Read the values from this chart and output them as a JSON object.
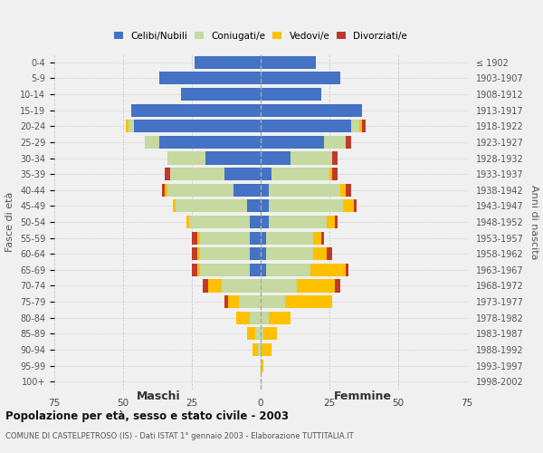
{
  "age_groups": [
    "0-4",
    "5-9",
    "10-14",
    "15-19",
    "20-24",
    "25-29",
    "30-34",
    "35-39",
    "40-44",
    "45-49",
    "50-54",
    "55-59",
    "60-64",
    "65-69",
    "70-74",
    "75-79",
    "80-84",
    "85-89",
    "90-94",
    "95-99",
    "100+"
  ],
  "birth_years": [
    "1998-2002",
    "1993-1997",
    "1988-1992",
    "1983-1987",
    "1978-1982",
    "1973-1977",
    "1968-1972",
    "1963-1967",
    "1958-1962",
    "1953-1957",
    "1948-1952",
    "1943-1947",
    "1938-1942",
    "1933-1937",
    "1928-1932",
    "1923-1927",
    "1918-1922",
    "1913-1917",
    "1908-1912",
    "1903-1907",
    "≤ 1902"
  ],
  "maschi": {
    "celibi": [
      24,
      37,
      29,
      47,
      46,
      37,
      20,
      13,
      10,
      5,
      4,
      4,
      4,
      4,
      0,
      0,
      0,
      0,
      0,
      0,
      0
    ],
    "coniugati": [
      0,
      0,
      0,
      0,
      2,
      5,
      14,
      20,
      24,
      26,
      22,
      18,
      18,
      18,
      14,
      8,
      4,
      2,
      1,
      0,
      0
    ],
    "vedovi": [
      0,
      0,
      0,
      0,
      1,
      0,
      0,
      0,
      1,
      1,
      1,
      1,
      1,
      1,
      5,
      4,
      5,
      3,
      2,
      0,
      0
    ],
    "divorziati": [
      0,
      0,
      0,
      0,
      0,
      0,
      0,
      2,
      1,
      0,
      0,
      2,
      2,
      2,
      2,
      1,
      0,
      0,
      0,
      0,
      0
    ]
  },
  "femmine": {
    "nubili": [
      20,
      29,
      22,
      37,
      33,
      23,
      11,
      4,
      3,
      3,
      3,
      2,
      2,
      2,
      0,
      0,
      0,
      0,
      0,
      0,
      0
    ],
    "coniugate": [
      0,
      0,
      0,
      0,
      3,
      8,
      15,
      21,
      26,
      27,
      21,
      17,
      17,
      16,
      13,
      9,
      3,
      1,
      0,
      0,
      0
    ],
    "vedove": [
      0,
      0,
      0,
      0,
      1,
      0,
      0,
      1,
      2,
      4,
      3,
      3,
      5,
      13,
      14,
      17,
      8,
      5,
      4,
      1,
      0
    ],
    "divorziate": [
      0,
      0,
      0,
      0,
      1,
      2,
      2,
      2,
      2,
      1,
      1,
      1,
      2,
      1,
      2,
      0,
      0,
      0,
      0,
      0,
      0
    ]
  },
  "colors": {
    "celibi": "#4472c4",
    "coniugati": "#c5d9a0",
    "vedovi": "#ffc000",
    "divorziati": "#c0392b"
  },
  "title": "Popolazione per età, sesso e stato civile - 2003",
  "subtitle": "COMUNE DI CASTELPETROSO (IS) - Dati ISTAT 1° gennaio 2003 - Elaborazione TUTTITALIA.IT",
  "xlabel_left": "Maschi",
  "xlabel_right": "Femmine",
  "ylabel_left": "Fasce di età",
  "ylabel_right": "Anni di nascita",
  "xlim": 75,
  "background_color": "#f0f0f0",
  "grid_color": "#cccccc"
}
